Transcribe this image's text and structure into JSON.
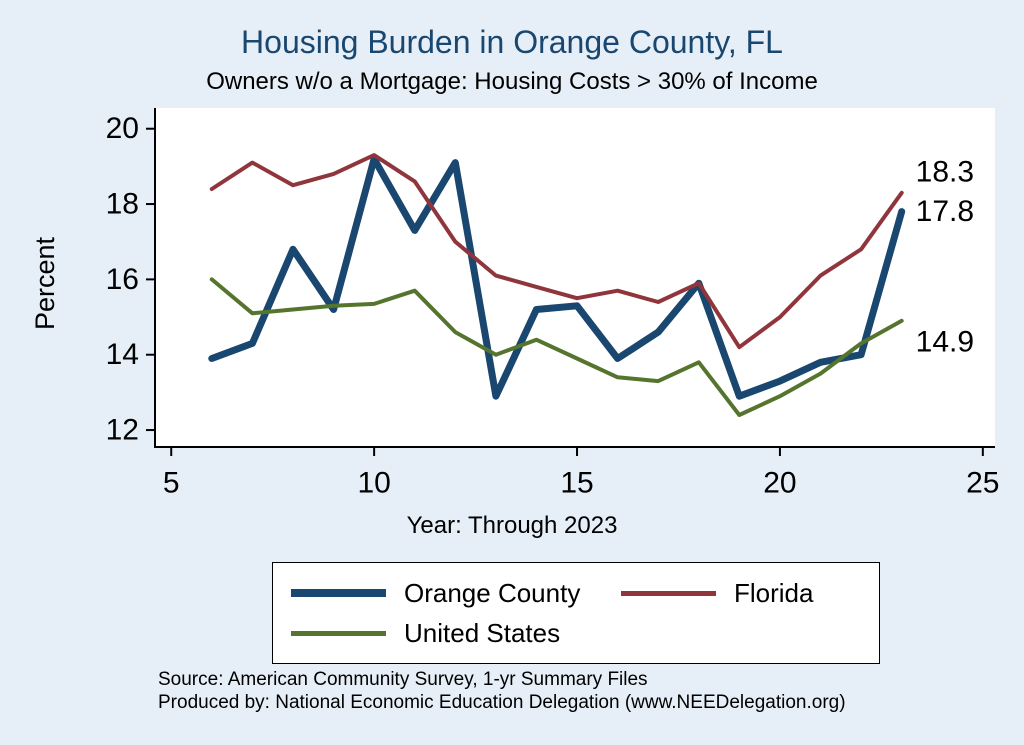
{
  "chart_data": {
    "type": "line",
    "title": "Housing Burden in Orange County, FL",
    "subtitle": "Owners w/o a Mortgage: Housing Costs > 30% of Income",
    "ylabel": "Percent",
    "xlabel": "Year: Through 2023",
    "xlim": [
      4.6,
      25.3
    ],
    "ylim": [
      11.55,
      20.55
    ],
    "xticks": [
      5,
      10,
      15,
      20,
      25
    ],
    "yticks": [
      12,
      14,
      16,
      18,
      20
    ],
    "grid": false,
    "legend_position": "bottom",
    "plot_background": "#ffffff",
    "page_background": "#e6eff8",
    "title_color": "#1a476f",
    "x": [
      6,
      7,
      8,
      9,
      10,
      11,
      12,
      13,
      14,
      15,
      16,
      17,
      18,
      19,
      20,
      21,
      22,
      23
    ],
    "series": [
      {
        "name": "Orange County",
        "color": "#1a476f",
        "width": 7,
        "values": [
          13.9,
          14.3,
          16.8,
          15.2,
          19.2,
          17.3,
          19.1,
          12.9,
          15.2,
          15.3,
          13.9,
          14.6,
          15.9,
          12.9,
          13.3,
          13.8,
          14.0,
          17.8
        ],
        "end_label": "17.8",
        "end_dy": 0
      },
      {
        "name": "Florida",
        "color": "#90353b",
        "width": 4,
        "values": [
          18.4,
          19.1,
          18.5,
          18.8,
          19.3,
          18.6,
          17.0,
          16.1,
          15.8,
          15.5,
          15.7,
          15.4,
          15.9,
          14.2,
          15.0,
          16.1,
          16.8,
          18.3
        ],
        "end_label": "18.3",
        "end_dy": -21
      },
      {
        "name": "United States",
        "color": "#55752f",
        "width": 4,
        "values": [
          16.0,
          15.1,
          15.2,
          15.3,
          15.35,
          15.7,
          14.6,
          14.0,
          14.4,
          13.9,
          13.4,
          13.3,
          13.8,
          12.4,
          12.9,
          13.5,
          14.3,
          14.9
        ],
        "end_label": "14.9",
        "end_dy": 21
      }
    ]
  },
  "source": {
    "line1": "Source: American Community Survey, 1-yr Summary Files",
    "line2": "Produced by: National Economic Education Delegation (www.NEEDelegation.org)"
  }
}
